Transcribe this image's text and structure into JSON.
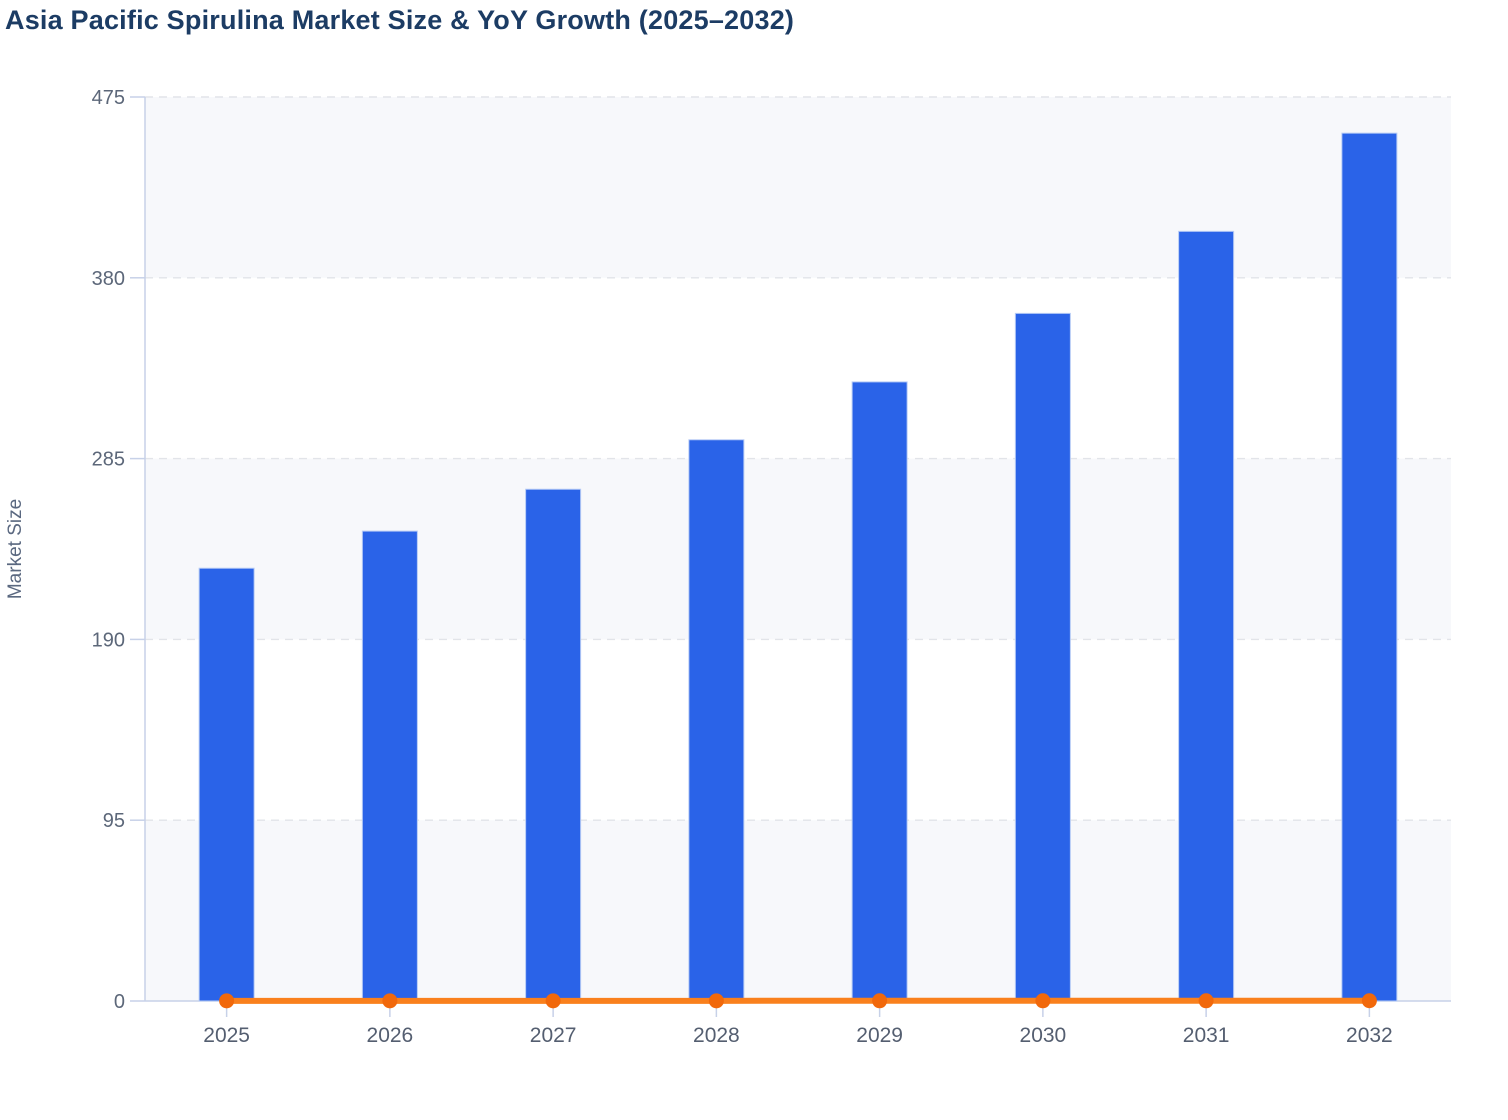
{
  "chart_data": {
    "type": "bar",
    "title": "Asia Pacific Spirulina Market Size & YoY Growth (2025–2032)",
    "ylabel": "Market Size",
    "xlabel": "",
    "categories": [
      "2025",
      "2026",
      "2027",
      "2028",
      "2029",
      "2030",
      "2031",
      "2032"
    ],
    "series": [
      {
        "name": "Market Size",
        "type": "bar",
        "color": "#2a63e8",
        "values": [
          227.4,
          246.9,
          268.9,
          294.9,
          325.3,
          361.3,
          404.4,
          456.0
        ]
      },
      {
        "name": "YoY Growth",
        "type": "line",
        "color": "#f9801d",
        "point_color": "#f1680b",
        "values": [
          0.09,
          0.086,
          0.089,
          0.097,
          0.103,
          0.111,
          0.119,
          0.128
        ],
        "note": "fractional YoY growth plotted on the Market Size axis, so the line renders flat along y≈0 with a marker dot at every year"
      }
    ],
    "ylim": [
      0,
      475
    ],
    "yticks": [
      0,
      95,
      190,
      285,
      380,
      475
    ],
    "grid": "horizontal dashed gridlines",
    "plot_bands": "alternating horizontal band shading (0–95, 190–285, 380–475 shaded)",
    "legend": "none"
  },
  "colors": {
    "background": "#ffffff",
    "title": "#1c3c64",
    "axis_line": "#c7d1e8",
    "gridline": "#e2e4e9",
    "band_fill": "#f7f8fb",
    "tick_label": "#5c6779",
    "x_tick_label": "#545e70",
    "bar_fill": "#2a63e8",
    "bar_stroke": "#b7cbf5",
    "line": "#f9801d",
    "point": "#f1680b",
    "axis_title": "#5a6880"
  }
}
